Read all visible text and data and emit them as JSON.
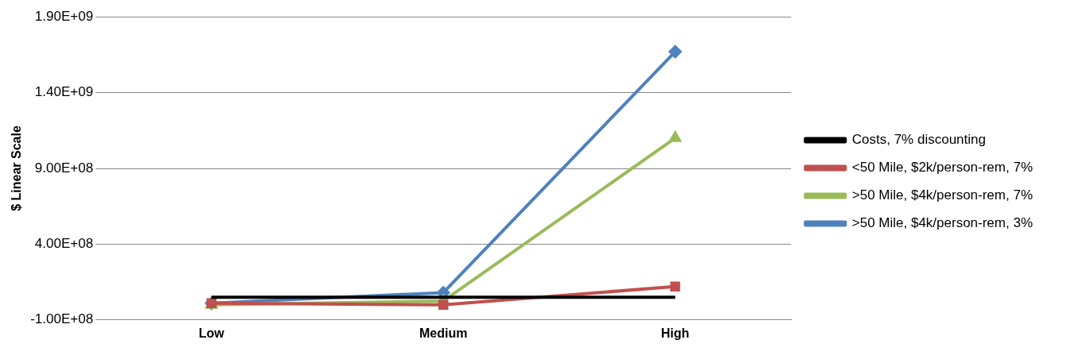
{
  "chart_data": {
    "type": "line",
    "ylabel": "$ Linear Scale",
    "categories": [
      "Low",
      "Medium",
      "High"
    ],
    "series": [
      {
        "name": "Costs, 7% discounting",
        "color": "#000000",
        "marker": "none",
        "values": [
          50000000,
          50000000,
          50000000
        ]
      },
      {
        "name": "<50 Mile, $2k/person-rem, 7%",
        "color": "#c0504d",
        "marker": "square",
        "values": [
          10000000,
          0,
          120000000
        ]
      },
      {
        "name": ">50 Mile, $4k/person-rem, 7%",
        "color": "#9bbb59",
        "marker": "triangle",
        "values": [
          0,
          25000000,
          1100000000
        ]
      },
      {
        "name": ">50 Mile, $4k/person-rem, 3%",
        "color": "#4f81bd",
        "marker": "diamond",
        "values": [
          10000000,
          80000000,
          1670000000
        ]
      }
    ],
    "ylim": [
      -100000000,
      1900000000
    ],
    "yticks": [
      {
        "value": -100000000,
        "label": "-1.00E+08"
      },
      {
        "value": 400000000,
        "label": "4.00E+08"
      },
      {
        "value": 900000000,
        "label": "9.00E+08"
      },
      {
        "value": 1400000000,
        "label": "1.40E+09"
      },
      {
        "value": 1900000000,
        "label": "1.90E+09"
      }
    ],
    "grid": "y",
    "legend": "right"
  }
}
